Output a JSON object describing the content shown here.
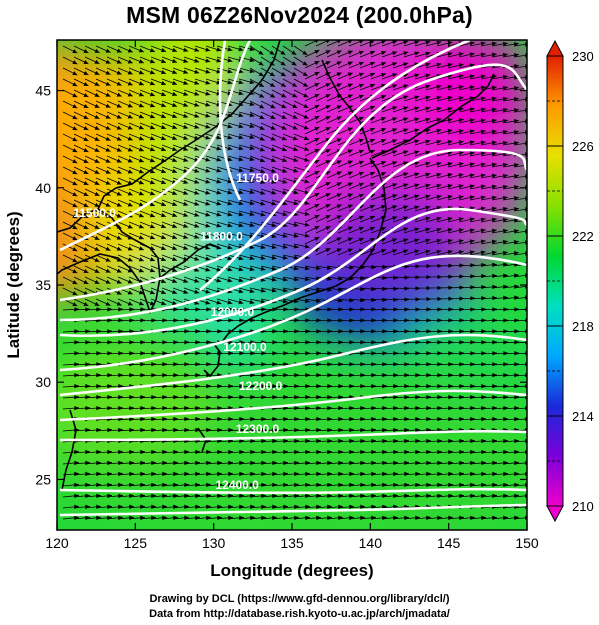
{
  "title": "MSM 06Z26Nov2024 (200.0hPa)",
  "axes": {
    "xlabel": "Longitude (degrees)",
    "ylabel": "Latitude  (degrees)",
    "xticks": [
      120,
      125,
      130,
      135,
      140,
      145,
      150
    ],
    "yticks": [
      25,
      30,
      35,
      40,
      45
    ],
    "xlim": [
      120,
      150
    ],
    "ylim": [
      22.4,
      47.6
    ]
  },
  "colorbar": {
    "ticks": [
      210,
      214,
      218,
      222,
      226,
      230
    ],
    "min": 210,
    "max": 230,
    "colors": [
      "#ee00cc",
      "#7a00d8",
      "#1a2ad8",
      "#00a8ff",
      "#00e0c0",
      "#00d830",
      "#88e000",
      "#e8e000",
      "#ff9a00",
      "#e02000"
    ]
  },
  "contours": [
    {
      "label": "11500.0",
      "lon": 122.4,
      "lat": 38.5
    },
    {
      "label": "11750.0",
      "lon": 132.8,
      "lat": 40.3
    },
    {
      "label": "11800.0",
      "lon": 130.5,
      "lat": 37.3
    },
    {
      "label": "12000.0",
      "lon": 131.2,
      "lat": 33.4
    },
    {
      "label": "12100.0",
      "lon": 132.0,
      "lat": 31.6
    },
    {
      "label": "12200.0",
      "lon": 133.0,
      "lat": 29.6
    },
    {
      "label": "12300.0",
      "lon": 132.8,
      "lat": 27.4
    },
    {
      "label": "12400.0",
      "lon": 131.5,
      "lat": 24.5
    }
  ],
  "credits": {
    "line1": "Drawing by DCL (https://www.gfd-dennou.org/library/dcl/)",
    "line2": "Data from http://database.rish.kyoto-u.ac.jp/arch/jmadata/"
  }
}
